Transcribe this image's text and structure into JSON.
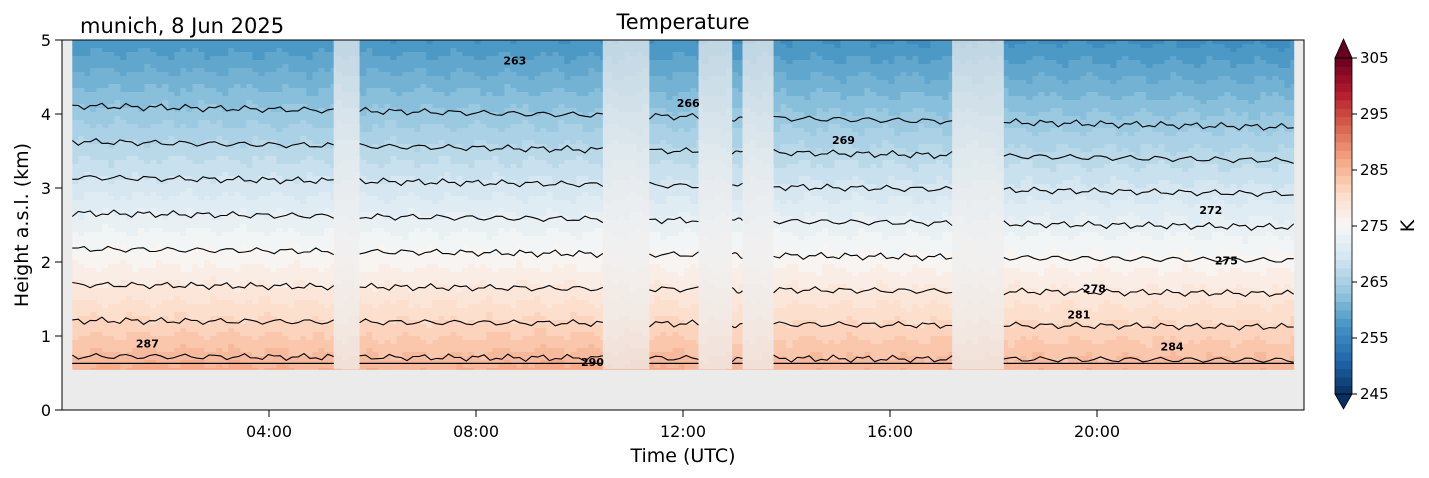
{
  "chart_data": {
    "type": "heatmap",
    "title": "Temperature",
    "subtitle": "munich, 8 Jun 2025",
    "xlabel": "Time (UTC)",
    "ylabel": "Height a.s.l. (km)",
    "x_ticks": [
      {
        "hour": 4,
        "label": "04:00"
      },
      {
        "hour": 8,
        "label": "08:00"
      },
      {
        "hour": 12,
        "label": "12:00"
      },
      {
        "hour": 16,
        "label": "16:00"
      },
      {
        "hour": 20,
        "label": "20:00"
      }
    ],
    "xlim_hours": [
      0,
      24
    ],
    "y_ticks": [
      {
        "value": 0,
        "label": "0"
      },
      {
        "value": 1,
        "label": "1"
      },
      {
        "value": 2,
        "label": "2"
      },
      {
        "value": 3,
        "label": "3"
      },
      {
        "value": 4,
        "label": "4"
      },
      {
        "value": 5,
        "label": "5"
      }
    ],
    "ylim_km": [
      0,
      5
    ],
    "data_height_range_km": [
      0.55,
      5
    ],
    "data_time_range_hours": [
      0.2,
      23.8
    ],
    "surface_temperature_K": 288.5,
    "lapse_rate_K_per_km": 6.2,
    "contour_levels": [
      263,
      266,
      269,
      272,
      275,
      278,
      281,
      284,
      287,
      290
    ],
    "contour_labels": [
      {
        "text": "263",
        "hour": 8.75,
        "km": 4.72
      },
      {
        "text": "266",
        "hour": 12.1,
        "km": 4.15
      },
      {
        "text": "269",
        "hour": 15.1,
        "km": 3.65
      },
      {
        "text": "272",
        "hour": 22.2,
        "km": 2.7
      },
      {
        "text": "275",
        "hour": 22.5,
        "km": 2.02
      },
      {
        "text": "278",
        "hour": 19.95,
        "km": 1.64
      },
      {
        "text": "281",
        "hour": 19.65,
        "km": 1.29
      },
      {
        "text": "284",
        "hour": 21.45,
        "km": 0.86
      },
      {
        "text": "287",
        "hour": 1.65,
        "km": 0.9
      },
      {
        "text": "290",
        "hour": 10.25,
        "km": 0.65
      }
    ],
    "gaps_hours": [
      [
        5.25,
        5.75
      ],
      [
        10.45,
        11.35
      ],
      [
        12.3,
        12.95
      ],
      [
        13.15,
        13.75
      ],
      [
        17.2,
        18.2
      ]
    ],
    "colorbar": {
      "label": "K",
      "min": 245,
      "max": 305,
      "ticks": [
        245,
        255,
        265,
        275,
        285,
        295,
        305
      ],
      "colormap": "RdBu_r",
      "extend": "both"
    },
    "grid": false
  }
}
